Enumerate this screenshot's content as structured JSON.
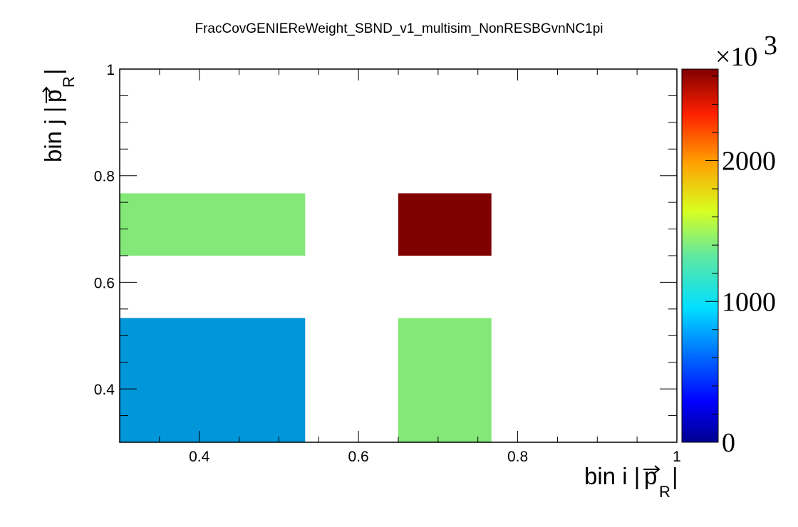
{
  "chart_data": {
    "type": "heatmap",
    "title": "FracCovGENIEReWeight_SBND_v1_multisim_NonRESBGvnNC1pi",
    "xlabel": "bin i |p_R|",
    "ylabel": "bin j |p_R|",
    "xlabel_parts": {
      "prefix": "bin i |",
      "var": "p",
      "sub": "R",
      "suffix": "|"
    },
    "ylabel_parts": {
      "prefix": "bin j |",
      "var": "p",
      "sub": "R",
      "suffix": "|"
    },
    "xlim": [
      0.3,
      1.0
    ],
    "ylim": [
      0.3,
      1.0
    ],
    "xticks": [
      "0.4",
      "0.6",
      "0.8",
      "1"
    ],
    "xtick_values": [
      0.4,
      0.6,
      0.8,
      1.0
    ],
    "yticks": [
      "0.4",
      "0.6",
      "0.8",
      "1"
    ],
    "ytick_values": [
      0.4,
      0.6,
      0.8,
      1.0
    ],
    "zlim": [
      0,
      2650
    ],
    "zticks": [
      "0",
      "1000",
      "2000"
    ],
    "ztick_values": [
      0,
      1000,
      2000
    ],
    "zscale_label": "×10",
    "zscale_exponent": "3",
    "colormap": "jet",
    "cells": [
      {
        "x0": 0.3,
        "x1": 0.533,
        "y0": 0.3,
        "y1": 0.533,
        "value": 750,
        "color": "#0096d9"
      },
      {
        "x0": 0.3,
        "x1": 0.533,
        "y0": 0.65,
        "y1": 0.767,
        "value": 1450,
        "color": "#83e878"
      },
      {
        "x0": 0.65,
        "x1": 0.767,
        "y0": 0.3,
        "y1": 0.533,
        "value": 1450,
        "color": "#83e878"
      },
      {
        "x0": 0.65,
        "x1": 0.767,
        "y0": 0.65,
        "y1": 0.767,
        "value": 2650,
        "color": "#800000"
      }
    ]
  }
}
